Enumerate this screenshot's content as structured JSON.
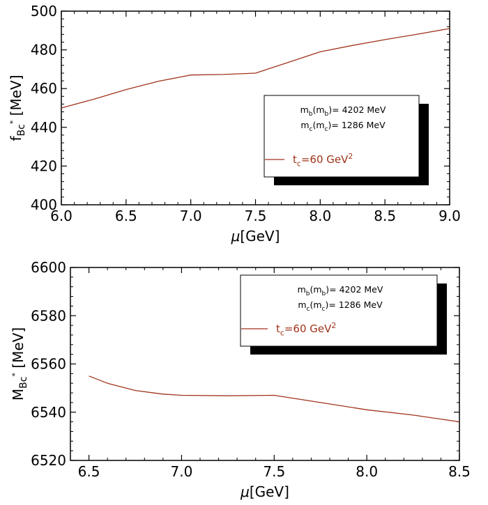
{
  "colors": {
    "series": "#a0331a",
    "axis": "#000000",
    "shadow": "#000000",
    "legend_bg": "#ffffff"
  },
  "chart_data": [
    {
      "type": "line",
      "title": "",
      "xlabel": "μ[GeV]",
      "ylabel": {
        "main": "f",
        "sub": "Bc",
        "sup": "*",
        "unit": " [MeV]"
      },
      "xlim": [
        6.0,
        9.0
      ],
      "ylim": [
        400,
        500
      ],
      "x_ticks": [
        "6.0",
        "6.5",
        "7.0",
        "7.5",
        "8.0",
        "8.5",
        "9.0"
      ],
      "y_ticks": [
        "400",
        "420",
        "440",
        "460",
        "480",
        "500"
      ],
      "x_tick_values": [
        6.0,
        6.5,
        7.0,
        7.5,
        8.0,
        8.5,
        9.0
      ],
      "y_tick_values": [
        400,
        420,
        440,
        460,
        480,
        500
      ],
      "legend": {
        "line1": "m_b(m_b)= 4202 MeV",
        "line2": "m_c(m_c)= 1286 MeV",
        "series": "t_c=60 GeV^2",
        "placement": "center-right"
      },
      "series": [
        {
          "name": "tc=60 GeV2",
          "x": [
            6.0,
            6.25,
            6.5,
            6.75,
            7.0,
            7.25,
            7.5,
            7.75,
            8.0,
            8.25,
            8.5,
            8.75,
            9.0
          ],
          "y": [
            450,
            454.5,
            459.5,
            463.8,
            467.0,
            467.3,
            468.0,
            473.5,
            479.0,
            482.3,
            485.3,
            488.1,
            491.0
          ]
        }
      ]
    },
    {
      "type": "line",
      "title": "",
      "xlabel": "μ[GeV]",
      "ylabel": {
        "main": "M",
        "sub": "Bc",
        "sup": "*",
        "unit": " [MeV]"
      },
      "xlim": [
        6.4,
        8.5
      ],
      "ylim": [
        6520,
        6600
      ],
      "x_ticks": [
        "6.5",
        "7.0",
        "7.5",
        "8.0",
        "8.5"
      ],
      "y_ticks": [
        "6520",
        "6540",
        "6560",
        "6580",
        "6600"
      ],
      "x_tick_values": [
        6.5,
        7.0,
        7.5,
        8.0,
        8.5
      ],
      "y_tick_values": [
        6520,
        6540,
        6560,
        6580,
        6600
      ],
      "legend": {
        "line1": "m_b(m_b)= 4202 MeV",
        "line2": "m_c(m_c)= 1286 MeV",
        "series": "t_c=60 GeV^2",
        "placement": "top-right"
      },
      "series": [
        {
          "name": "tc=60 GeV2",
          "x": [
            6.5,
            6.6,
            6.75,
            6.9,
            7.0,
            7.25,
            7.5,
            7.75,
            8.0,
            8.25,
            8.5
          ],
          "y": [
            6555,
            6552,
            6549,
            6547.5,
            6547,
            6546.8,
            6547,
            6544,
            6541,
            6538.8,
            6536
          ]
        }
      ]
    }
  ]
}
